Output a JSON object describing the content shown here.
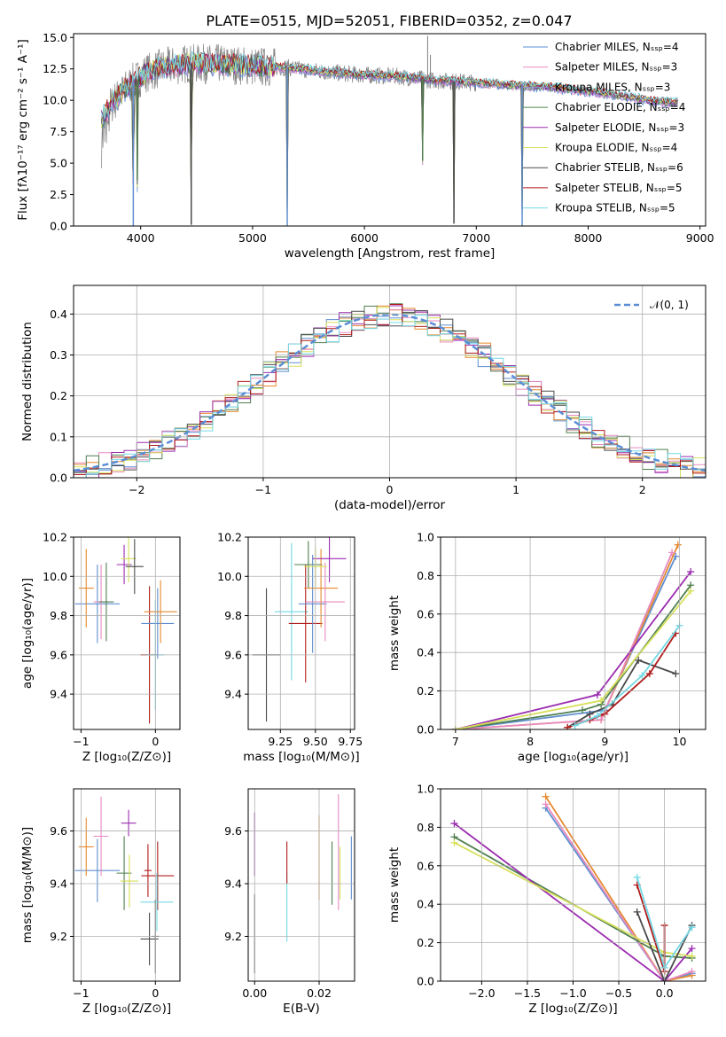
{
  "figure": {
    "title": "PLATE=0515, MJD=52051, FIBERID=0352, z=0.047"
  },
  "colors": {
    "series": [
      "#5b8ed6",
      "#e88ac0",
      "#8f8fdb",
      "#4e8a4e",
      "#9b2db0",
      "#d7e05b",
      "#4a4a4a",
      "#b01c1c",
      "#74d9e6"
    ],
    "steel": [
      "#5f8fd0",
      "#e58a2f",
      "#e88ac0",
      "#4f7f4f",
      "#9b2db0",
      "#d7e05b",
      "#4a4a4a",
      "#b01c1c",
      "#74d9e6"
    ],
    "data_gray": "#808080",
    "normal_curve": "#5b8ed6",
    "grid": "#b0b0b0"
  },
  "chart_data": [
    {
      "id": "spectrum",
      "type": "line",
      "title": "PLATE=0515, MJD=52051, FIBERID=0352, z=0.047",
      "xlabel": "wavelength [Angstrom, rest frame]",
      "ylabel": "Flux [fλ10⁻¹⁷ erg cm⁻² s⁻¹ A⁻¹]",
      "xlim": [
        3400,
        9050
      ],
      "ylim": [
        0,
        15.3
      ],
      "xticks": [
        "4000",
        "5000",
        "6000",
        "7000",
        "8000",
        "9000"
      ],
      "yticks": [
        "0.0",
        "2.5",
        "5.0",
        "7.5",
        "10.0",
        "12.5",
        "15.0"
      ],
      "grid": false,
      "legend_position": "top-right",
      "legend": [
        "Chabrier MILES, Nₛₛₚ=4",
        "Salpeter MILES, Nₛₛₚ=3",
        "Kroupa MILES, Nₛₛₚ=3",
        "Chabrier ELODIE, Nₛₛₚ=4",
        "Salpeter ELODIE, Nₛₛₚ=3",
        "Kroupa ELODIE, Nₛₛₚ=4",
        "Chabrier STELIB, Nₛₛₚ=6",
        "Salpeter STELIB, Nₛₛₚ=5",
        "Kroupa STELIB, Nₛₛₚ=5"
      ],
      "continuum": [
        [
          3650,
          8.5
        ],
        [
          3750,
          9.8
        ],
        [
          3900,
          11.2
        ],
        [
          4050,
          12.2
        ],
        [
          4200,
          12.6
        ],
        [
          4400,
          12.9
        ],
        [
          4700,
          12.9
        ],
        [
          5000,
          12.7
        ],
        [
          5300,
          12.6
        ],
        [
          5600,
          12.3
        ],
        [
          6000,
          12.0
        ],
        [
          6300,
          11.9
        ],
        [
          6600,
          11.6
        ],
        [
          7000,
          11.4
        ],
        [
          7300,
          11.2
        ],
        [
          7600,
          11.1
        ],
        [
          7800,
          10.9
        ],
        [
          8100,
          10.6
        ],
        [
          8400,
          10.2
        ],
        [
          8600,
          9.9
        ],
        [
          8800,
          9.8
        ]
      ],
      "absorption_lines": [
        {
          "x": 3934,
          "depth": 12.0
        },
        {
          "x": 3970,
          "depth": 8.0
        },
        {
          "x": 4452,
          "depth": 12.8
        },
        {
          "x": 5310,
          "depth": 12.5
        },
        {
          "x": 6520,
          "depth": 6.5
        },
        {
          "x": 6800,
          "depth": 11.3
        },
        {
          "x": 7410,
          "depth": 11.1
        }
      ],
      "emission_lines": [
        {
          "x": 6565,
          "height": 3.5
        },
        {
          "x": 6590,
          "height": 2.0
        }
      ]
    },
    {
      "id": "residuals",
      "type": "histogram",
      "xlabel": "(data-model)/error",
      "ylabel": "Normed distribution",
      "xlim": [
        -2.5,
        2.5
      ],
      "ylim": [
        0,
        0.47
      ],
      "xticks": [
        "−2",
        "−1",
        "0",
        "1",
        "2"
      ],
      "yticks": [
        "0.0",
        "0.1",
        "0.2",
        "0.3",
        "0.4"
      ],
      "grid": true,
      "legend_position": "top-right",
      "legend": [
        "𝒩(0, 1)"
      ],
      "bin_width": 0.1,
      "normal": {
        "mu": 0,
        "sigma": 1
      }
    },
    {
      "id": "age_vs_Z",
      "type": "errorbar",
      "xlabel": "Z [log₁₀(Z/Z⊙)]",
      "ylabel": "age  [log₁₀(age/yr)]",
      "xlim": [
        -1.1,
        0.33
      ],
      "ylim": [
        9.22,
        10.2
      ],
      "xticks": [
        "−1",
        "0"
      ],
      "xtick_values": [
        -1,
        0
      ],
      "yticks": [
        "9.4",
        "9.6",
        "9.8",
        "10.0",
        "10.2"
      ],
      "ytick_values": [
        9.4,
        9.6,
        9.8,
        10.0,
        10.2
      ],
      "grid": true,
      "points": [
        {
          "x": -0.78,
          "y": 9.86,
          "xerr": 0.3,
          "yerr": 0.2,
          "series": 0
        },
        {
          "x": -0.93,
          "y": 9.94,
          "xerr": 0.1,
          "yerr": 0.2,
          "series": 1
        },
        {
          "x": -0.73,
          "y": 9.87,
          "xerr": 0.1,
          "yerr": 0.19,
          "series": 2
        },
        {
          "x": -0.66,
          "y": 9.87,
          "xerr": 0.1,
          "yerr": 0.2,
          "series": 3
        },
        {
          "x": -0.42,
          "y": 10.06,
          "xerr": 0.1,
          "yerr": 0.1,
          "series": 4
        },
        {
          "x": -0.36,
          "y": 10.09,
          "xerr": 0.1,
          "yerr": 0.12,
          "series": 5
        },
        {
          "x": -0.28,
          "y": 10.05,
          "xerr": 0.12,
          "yerr": 0.14,
          "series": 6
        },
        {
          "x": -0.08,
          "y": 9.6,
          "xerr": 0.12,
          "yerr": 0.35,
          "series": 7
        },
        {
          "x": 0.0,
          "y": 9.6,
          "xerr": 0.12,
          "yerr": 0.28,
          "series": 8
        },
        {
          "x": 0.03,
          "y": 9.76,
          "xerr": 0.22,
          "yerr": 0.18,
          "series": 9
        },
        {
          "x": 0.07,
          "y": 9.82,
          "xerr": 0.22,
          "yerr": 0.16,
          "series": 10
        }
      ]
    },
    {
      "id": "age_vs_mass",
      "type": "errorbar",
      "xlabel": "mass [log₁₀(M/M⊙)]",
      "xlim": [
        9.02,
        9.78
      ],
      "ylim": [
        9.22,
        10.2
      ],
      "xticks": [
        "9.25",
        "9.50",
        "9.75"
      ],
      "xtick_values": [
        9.25,
        9.5,
        9.75
      ],
      "yticks": [
        "9.4",
        "9.6",
        "9.8",
        "10.0",
        "10.2"
      ],
      "ytick_values": [
        9.4,
        9.6,
        9.8,
        10.0,
        10.2
      ],
      "grid": true,
      "points": [
        {
          "x": 9.15,
          "y": 9.6,
          "xerr": 0.1,
          "yerr": 0.34,
          "series": 6
        },
        {
          "x": 9.33,
          "y": 9.82,
          "xerr": 0.12,
          "yerr": 0.35,
          "series": 8
        },
        {
          "x": 9.43,
          "y": 9.76,
          "xerr": 0.12,
          "yerr": 0.3,
          "series": 7
        },
        {
          "x": 9.45,
          "y": 10.06,
          "xerr": 0.1,
          "yerr": 0.12,
          "series": 3
        },
        {
          "x": 9.48,
          "y": 9.86,
          "xerr": 0.1,
          "yerr": 0.25,
          "series": 0
        },
        {
          "x": 9.54,
          "y": 9.94,
          "xerr": 0.12,
          "yerr": 0.2,
          "series": 1
        },
        {
          "x": 9.57,
          "y": 9.87,
          "xerr": 0.14,
          "yerr": 0.2,
          "series": 2
        },
        {
          "x": 9.6,
          "y": 10.09,
          "xerr": 0.12,
          "yerr": 0.12,
          "series": 4
        },
        {
          "x": 9.5,
          "y": 10.05,
          "xerr": 0.08,
          "yerr": 0.1,
          "series": 5
        }
      ]
    },
    {
      "id": "weight_vs_age",
      "type": "line",
      "xlabel": "age  [log₁₀(age/yr)]",
      "ylabel": "mass weight",
      "xlim": [
        6.8,
        10.35
      ],
      "ylim": [
        0,
        1
      ],
      "xticks": [
        "7",
        "8",
        "9",
        "10"
      ],
      "xtick_values": [
        7,
        8,
        9,
        10
      ],
      "yticks": [
        "0.0",
        "0.2",
        "0.4",
        "0.6",
        "0.8",
        "1.0"
      ],
      "ytick_values": [
        0,
        0.2,
        0.4,
        0.6,
        0.8,
        1.0
      ],
      "grid": true,
      "series": [
        {
          "x": [
            7.0,
            9.0,
            9.95
          ],
          "y": [
            0.0,
            0.1,
            0.9
          ],
          "color": 0
        },
        {
          "x": [
            7.0,
            8.95,
            9.98
          ],
          "y": [
            0.0,
            0.05,
            0.96
          ],
          "color": 1
        },
        {
          "x": [
            7.0,
            8.95,
            9.9
          ],
          "y": [
            0.0,
            0.05,
            0.92
          ],
          "color": 2
        },
        {
          "x": [
            7.0,
            8.7,
            8.95,
            10.15
          ],
          "y": [
            0.0,
            0.1,
            0.13,
            0.75
          ],
          "color": 3
        },
        {
          "x": [
            7.0,
            8.9,
            10.15
          ],
          "y": [
            0.0,
            0.18,
            0.82
          ],
          "color": 4
        },
        {
          "x": [
            7.0,
            8.95,
            10.15
          ],
          "y": [
            0.0,
            0.15,
            0.72
          ],
          "color": 5
        },
        {
          "x": [
            8.5,
            8.8,
            9.1,
            9.45,
            9.95
          ],
          "y": [
            0.01,
            0.08,
            0.13,
            0.36,
            0.29
          ],
          "color": 6
        },
        {
          "x": [
            8.5,
            8.8,
            9.0,
            9.6,
            9.95
          ],
          "y": [
            0.01,
            0.05,
            0.08,
            0.29,
            0.5
          ],
          "color": 7
        },
        {
          "x": [
            8.6,
            8.9,
            9.5,
            10.0
          ],
          "y": [
            0.02,
            0.07,
            0.28,
            0.54
          ],
          "color": 8
        }
      ]
    },
    {
      "id": "mass_vs_Z",
      "type": "errorbar",
      "xlabel": "Z [log₁₀(Z/Z⊙)]",
      "ylabel": "mass [log₁₀(M/M⊙)]",
      "xlim": [
        -1.1,
        0.33
      ],
      "ylim": [
        9.03,
        9.76
      ],
      "xticks": [
        "−1",
        "0"
      ],
      "xtick_values": [
        -1,
        0
      ],
      "yticks": [
        "9.2",
        "9.4",
        "9.6"
      ],
      "ytick_values": [
        9.2,
        9.4,
        9.6
      ],
      "grid": true,
      "points": [
        {
          "x": -0.78,
          "y": 9.45,
          "xerr": 0.3,
          "yerr": 0.12,
          "series": 0
        },
        {
          "x": -0.93,
          "y": 9.54,
          "xerr": 0.1,
          "yerr": 0.11,
          "series": 1
        },
        {
          "x": -0.73,
          "y": 9.58,
          "xerr": 0.1,
          "yerr": 0.15,
          "series": 2
        },
        {
          "x": -0.42,
          "y": 9.44,
          "xerr": 0.1,
          "yerr": 0.14,
          "series": 3
        },
        {
          "x": -0.36,
          "y": 9.63,
          "xerr": 0.1,
          "yerr": 0.05,
          "series": 4
        },
        {
          "x": -0.35,
          "y": 9.41,
          "xerr": 0.12,
          "yerr": 0.1,
          "series": 5
        },
        {
          "x": -0.08,
          "y": 9.19,
          "xerr": 0.12,
          "yerr": 0.1,
          "series": 6
        },
        {
          "x": 0.03,
          "y": 9.43,
          "xerr": 0.22,
          "yerr": 0.13,
          "series": 7
        },
        {
          "x": -0.1,
          "y": 9.45,
          "xerr": 0.05,
          "yerr": 0.1,
          "series": 7
        },
        {
          "x": 0.02,
          "y": 9.33,
          "xerr": 0.22,
          "yerr": 0.11,
          "series": 8
        },
        {
          "x": 0.0,
          "y": 9.2,
          "xerr": 0.05,
          "yerr": 0.14,
          "series": 6
        }
      ]
    },
    {
      "id": "mass_vs_ebv",
      "type": "errorbar",
      "xlabel": "E(B-V)",
      "xlim": [
        -0.002,
        0.031
      ],
      "ylim": [
        9.03,
        9.76
      ],
      "xticks": [
        "0.00",
        "0.02"
      ],
      "xtick_values": [
        0.0,
        0.02
      ],
      "yticks": [
        "9.2",
        "9.4",
        "9.6"
      ],
      "ytick_values": [
        9.2,
        9.4,
        9.6
      ],
      "grid": true,
      "points": [
        {
          "x": 0.0,
          "y": 9.21,
          "xerr": 0,
          "yerr": 0.15,
          "series": 6
        },
        {
          "x": 0.0,
          "y": 9.55,
          "xerr": 0,
          "yerr": 0.12,
          "series": 4
        },
        {
          "x": 0.01,
          "y": 9.31,
          "xerr": 0,
          "yerr": 0.13,
          "series": 8
        },
        {
          "x": 0.01,
          "y": 9.48,
          "xerr": 0,
          "yerr": 0.08,
          "series": 7
        },
        {
          "x": 0.02,
          "y": 9.5,
          "xerr": 0,
          "yerr": 0.16,
          "series": 1
        },
        {
          "x": 0.024,
          "y": 9.44,
          "xerr": 0,
          "yerr": 0.12,
          "series": 3
        },
        {
          "x": 0.026,
          "y": 9.52,
          "xerr": 0,
          "yerr": 0.22,
          "series": 2
        },
        {
          "x": 0.0265,
          "y": 9.44,
          "xerr": 0,
          "yerr": 0.1,
          "series": 5
        },
        {
          "x": 0.03,
          "y": 9.46,
          "xerr": 0,
          "yerr": 0.12,
          "series": 0
        }
      ]
    },
    {
      "id": "weight_vs_Z",
      "type": "line",
      "xlabel": "Z [log₁₀(Z/Z⊙)]",
      "ylabel": "mass weight",
      "xlim": [
        -2.45,
        0.45
      ],
      "ylim": [
        0,
        1
      ],
      "xticks": [
        "−2.0",
        "−1.5",
        "−1.0",
        "−0.5",
        "0.0"
      ],
      "xtick_values": [
        -2.0,
        -1.5,
        -1.0,
        -0.5,
        0.0
      ],
      "yticks": [
        "0.0",
        "0.2",
        "0.4",
        "0.6",
        "0.8",
        "1.0"
      ],
      "ytick_values": [
        0,
        0.2,
        0.4,
        0.6,
        0.8,
        1.0
      ],
      "grid": true,
      "series": [
        {
          "x": [
            -1.3,
            0.0,
            0.3
          ],
          "y": [
            0.9,
            0.0,
            0.04
          ],
          "color": 0
        },
        {
          "x": [
            -1.3,
            0.0,
            0.3
          ],
          "y": [
            0.96,
            0.0,
            0.03
          ],
          "color": 1
        },
        {
          "x": [
            -1.3,
            0.0,
            0.3
          ],
          "y": [
            0.92,
            0.0,
            0.05
          ],
          "color": 2
        },
        {
          "x": [
            -2.3,
            0.0,
            0.3
          ],
          "y": [
            0.75,
            0.13,
            0.12
          ],
          "color": 3
        },
        {
          "x": [
            -2.3,
            0.0,
            0.3
          ],
          "y": [
            0.82,
            0.0,
            0.17
          ],
          "color": 4
        },
        {
          "x": [
            -2.3,
            0.0,
            0.3
          ],
          "y": [
            0.72,
            0.15,
            0.13
          ],
          "color": 5
        },
        {
          "x": [
            -0.3,
            0.0,
            0.3
          ],
          "y": [
            0.36,
            0.0,
            0.29
          ],
          "color": 6
        },
        {
          "x": [
            -0.3,
            0.0,
            0.0
          ],
          "y": [
            0.5,
            0.05,
            0.29
          ],
          "color": 7
        },
        {
          "x": [
            -0.3,
            0.0,
            0.3
          ],
          "y": [
            0.54,
            0.07,
            0.28
          ],
          "color": 8
        }
      ]
    }
  ]
}
